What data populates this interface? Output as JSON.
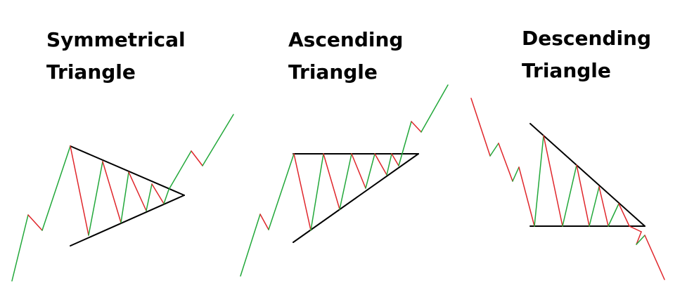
{
  "panels": [
    {
      "title_line1": "Symmetrical",
      "title_line2": "Triangle"
    },
    {
      "title_line1": "Ascending",
      "title_line2": "Triangle"
    },
    {
      "title_line1": "Descending",
      "title_line2": "Triangle"
    }
  ],
  "colors": {
    "up": "#22a83a",
    "down": "#e0262b",
    "trendline": "#000000",
    "title": "#000000",
    "background": "#ffffff"
  }
}
